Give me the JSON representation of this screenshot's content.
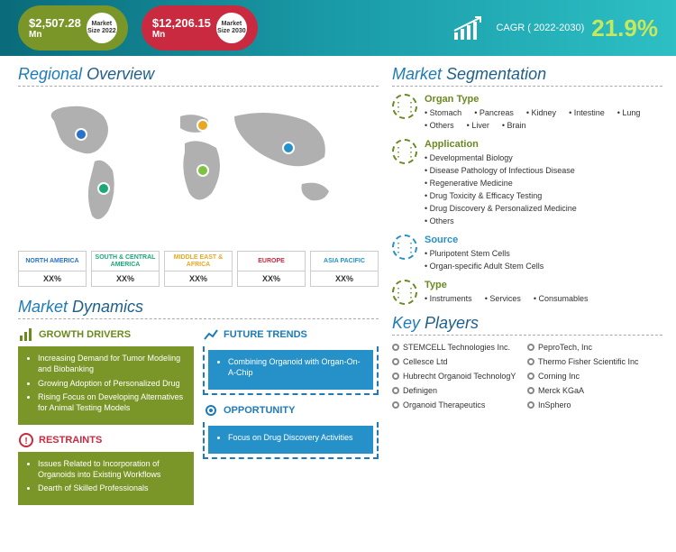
{
  "header": {
    "pill2022": {
      "value": "$2,507.28",
      "unit": "Mn",
      "label1": "Market",
      "label2": "Size 2022",
      "bg": "#7a9629"
    },
    "pill2030": {
      "value": "$12,206.15",
      "unit": "Mn",
      "label1": "Market",
      "label2": "Size 2030",
      "bg": "#c92a3f"
    },
    "cagr_label": "CAGR ( 2022-2030)",
    "cagr_value": "21.9%",
    "bg_gradient": "linear-gradient(90deg, #0a6b7a 0%, #1a9ba8 50%, #2dbfc4 100%)"
  },
  "regional": {
    "title_a": "Regional ",
    "title_b": "Overview",
    "regions": [
      {
        "name": "NORTH AMERICA",
        "pct": "XX%",
        "color": "#2872c9"
      },
      {
        "name": "SOUTH & CENTRAL AMERICA",
        "pct": "XX%",
        "color": "#1aa87a"
      },
      {
        "name": "MIDDLE EAST & AFRICA",
        "pct": "XX%",
        "color": "#e8a823"
      },
      {
        "name": "EUROPE",
        "pct": "XX%",
        "color": "#c92a3f"
      },
      {
        "name": "ASIA PACIFIC",
        "pct": "XX%",
        "color": "#2691c9"
      }
    ]
  },
  "dynamics": {
    "title_a": "Market ",
    "title_b": "Dynamics",
    "growth": {
      "label": "GROWTH DRIVERS",
      "items": [
        "Increasing Demand for Tumor Modeling and Biobanking",
        "Growing Adoption of Personalized Drug",
        "Rising Focus on Developing Alternatives for Animal Testing Models"
      ]
    },
    "restraints": {
      "label": "RESTRAINTS",
      "items": [
        "Issues Related to Incorporation of Organoids into Existing Workflows",
        "Dearth of Skilled Professionals"
      ]
    },
    "trends": {
      "label": "FUTURE TRENDS",
      "items": [
        "Combining Organoid with Organ-On-A-Chip"
      ]
    },
    "opportunity": {
      "label": "OPPORTUNITY",
      "items": [
        "Focus on Drug Discovery Activities"
      ]
    }
  },
  "segmentation": {
    "title_a": "Market ",
    "title_b": "Segmentation",
    "groups": [
      {
        "title": "Organ Type",
        "icon_color": "green",
        "items": [
          "Stomach",
          "Pancreas",
          "Kidney",
          "Intestine",
          "Lung",
          "Others",
          "Liver",
          "Brain"
        ]
      },
      {
        "title": "Application",
        "icon_color": "green",
        "col1": true,
        "items": [
          "Developmental Biology",
          "Disease Pathology of Infectious Disease",
          "Regenerative Medicine",
          "Drug Toxicity & Efficacy Testing",
          "Drug Discovery & Personalized Medicine",
          "Others"
        ]
      },
      {
        "title": "Source",
        "icon_color": "blue",
        "col1": true,
        "items": [
          "Pluripotent Stem Cells",
          "Organ-specific Adult Stem Cells"
        ]
      },
      {
        "title": "Type",
        "icon_color": "green",
        "items": [
          "Instruments",
          "Services",
          "Consumables"
        ]
      }
    ]
  },
  "keyplayers": {
    "title_a": "Key ",
    "title_b": "Players",
    "left": [
      "STEMCELL Technologies Inc.",
      "Cellesce Ltd",
      "Hubrecht Organoid TechnologY",
      "Definigen",
      "Organoid Therapeutics"
    ],
    "right": [
      "PeproTech, Inc",
      "Thermo Fisher Scientific Inc",
      "Corning Inc",
      "Merck KGaA",
      "InSphero"
    ]
  }
}
